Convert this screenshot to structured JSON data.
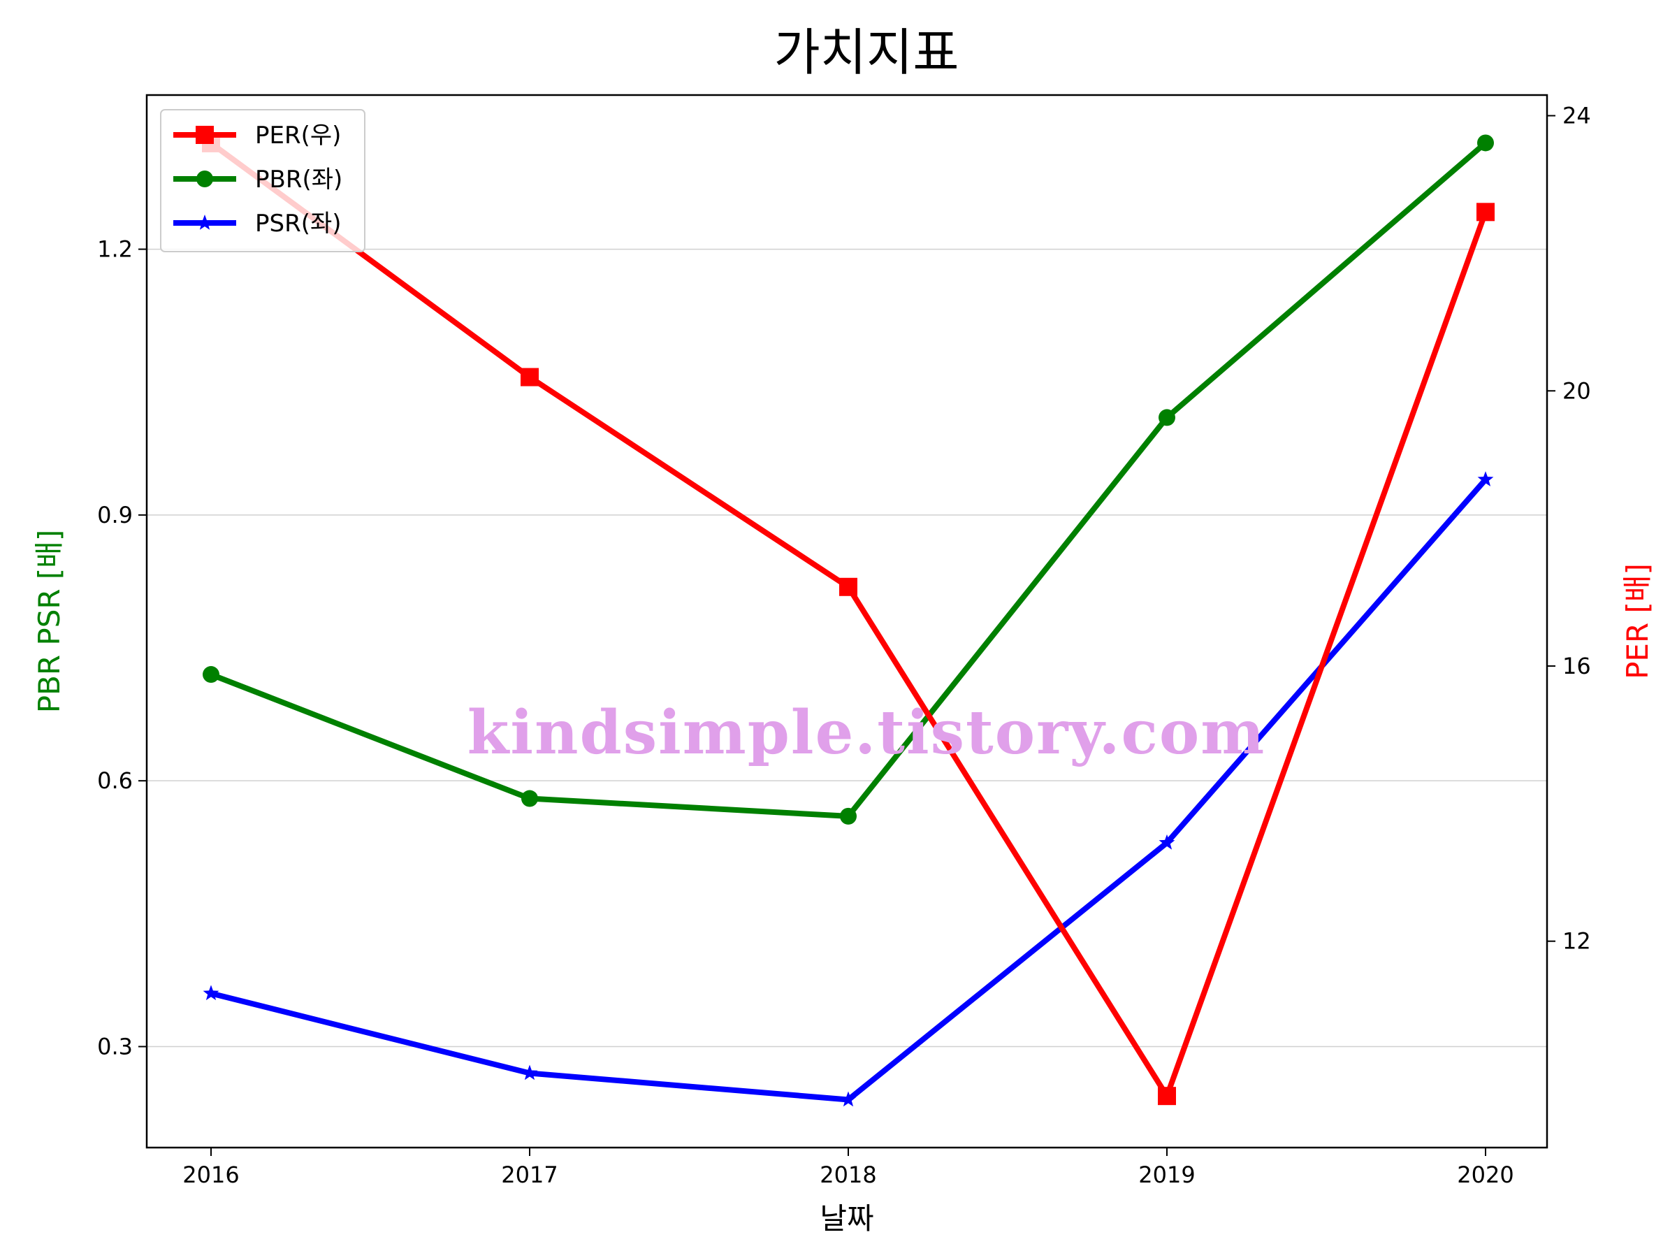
{
  "chart_data": {
    "type": "line",
    "title": "가치지표",
    "xlabel": "날짜",
    "ylabel_left": "PBR PSR [배]",
    "ylabel_right": "PER [배]",
    "categories": [
      "2016",
      "2017",
      "2018",
      "2019",
      "2020"
    ],
    "left_axis": {
      "ylim": [
        0.186,
        1.374
      ],
      "ticks": [
        0.3,
        0.6,
        0.9,
        1.2
      ],
      "tick_labels": [
        "0.3",
        "0.6",
        "0.9",
        "1.2"
      ]
    },
    "right_axis": {
      "ylim": [
        9.0,
        24.3
      ],
      "ticks": [
        12,
        16,
        20,
        24
      ],
      "tick_labels": [
        "12",
        "16",
        "20",
        "24"
      ]
    },
    "series": [
      {
        "name": "PER(우)",
        "axis": "right",
        "color": "#ff0000",
        "marker": "square",
        "values": [
          23.6,
          20.2,
          17.15,
          9.75,
          22.6
        ]
      },
      {
        "name": "PBR(좌)",
        "axis": "left",
        "color": "#008000",
        "marker": "circle",
        "values": [
          0.72,
          0.58,
          0.56,
          1.01,
          1.32
        ]
      },
      {
        "name": "PSR(좌)",
        "axis": "left",
        "color": "#0000ff",
        "marker": "star",
        "values": [
          0.36,
          0.27,
          0.24,
          0.53,
          0.94
        ]
      }
    ],
    "grid": "horizontal",
    "legend_position": "top-left",
    "watermark": "kindsimple.tistory.com"
  }
}
